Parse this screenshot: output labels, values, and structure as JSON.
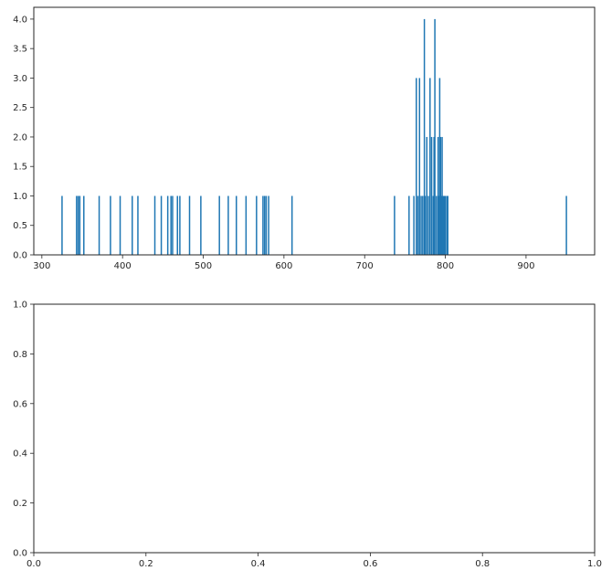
{
  "chart_data": [
    {
      "type": "bar",
      "subtype": "histogram",
      "title": "",
      "xlabel": "",
      "ylabel": "",
      "xlim": [
        290,
        985
      ],
      "ylim": [
        0,
        4.2
      ],
      "grid": false,
      "color": "#1f77b4",
      "bar_width": 1.7,
      "xticks": [
        "300",
        "400",
        "500",
        "600",
        "700",
        "800",
        "900"
      ],
      "yticks": [
        "0.0",
        "0.5",
        "1.0",
        "1.5",
        "2.0",
        "2.5",
        "3.0",
        "3.5",
        "4.0"
      ],
      "x": [
        325,
        343,
        345,
        347,
        352,
        371,
        385,
        397,
        412,
        419,
        440,
        448,
        456,
        460,
        462,
        468,
        471,
        483,
        497,
        520,
        531,
        541,
        553,
        566,
        574,
        576,
        578,
        581,
        610,
        737,
        755,
        761,
        764,
        766,
        768,
        770,
        772,
        774,
        775,
        777,
        779,
        781,
        783,
        785,
        786,
        787,
        789,
        791,
        792,
        793,
        794,
        795,
        796,
        797,
        798,
        799,
        800,
        802,
        803,
        950
      ],
      "values": [
        1,
        1,
        1,
        1,
        1,
        1,
        1,
        1,
        1,
        1,
        1,
        1,
        1,
        1,
        1,
        1,
        1,
        1,
        1,
        1,
        1,
        1,
        1,
        1,
        1,
        1,
        1,
        1,
        1,
        1,
        1,
        1,
        3,
        1,
        3,
        1,
        1,
        4,
        1,
        2,
        1,
        3,
        2,
        1,
        2,
        4,
        1,
        2,
        1,
        3,
        2,
        1,
        2,
        1,
        1,
        1,
        1,
        1,
        1,
        1
      ]
    },
    {
      "type": "scatter",
      "title": "",
      "xlabel": "",
      "ylabel": "",
      "xlim": [
        0,
        1
      ],
      "ylim": [
        0,
        1
      ],
      "grid": false,
      "xticks": [
        "0.0",
        "0.2",
        "0.4",
        "0.6",
        "0.8",
        "1.0"
      ],
      "yticks": [
        "0.0",
        "0.2",
        "0.4",
        "0.6",
        "0.8",
        "1.0"
      ],
      "x": [],
      "values": []
    }
  ]
}
